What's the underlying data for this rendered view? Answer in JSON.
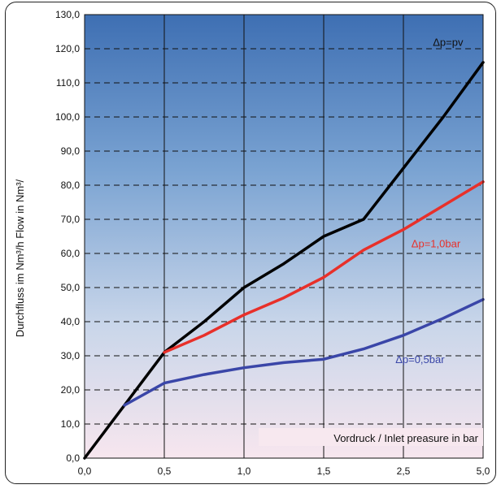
{
  "chart_data": {
    "type": "line",
    "ylabel": "Durchfluss im Nm³/h  Flow in Nm³/",
    "xlabel": "Vordruck / Inlet preasure in bar",
    "x_tick_labels": [
      "0,0",
      "0,5",
      "1,0",
      "1,5",
      "2,5",
      "5,0"
    ],
    "y_tick_labels": [
      "0,0",
      "10,0",
      "20,0",
      "30,0",
      "40,0",
      "50,0",
      "60,0",
      "70,0",
      "80,0",
      "90,0",
      "100,0",
      "110,0",
      "120,0",
      "130,0"
    ],
    "ylim": [
      0,
      130
    ],
    "grid": true,
    "series": [
      {
        "name": "Δp=pv",
        "color": "#000000",
        "x": [
          0.0,
          0.5,
          1.0,
          1.5,
          2.0,
          2.5,
          3.0,
          3.5,
          4.0,
          4.5,
          5.0
        ],
        "y": [
          0.0,
          15.5,
          31.0,
          40.0,
          50.0,
          57.0,
          65.0,
          70.0,
          85.0,
          100.0,
          116.0
        ]
      },
      {
        "name": "Δp=1,0bar",
        "color": "#e8302a",
        "x": [
          1.0,
          1.5,
          2.0,
          2.5,
          3.0,
          3.5,
          4.0,
          4.5,
          5.0
        ],
        "y": [
          31.0,
          36.0,
          42.0,
          47.0,
          53.0,
          61.0,
          67.0,
          74.0,
          81.0
        ]
      },
      {
        "name": "Δp=0,5bar",
        "color": "#3a46a8",
        "x": [
          0.5,
          1.0,
          1.5,
          2.0,
          2.5,
          3.0,
          3.5,
          4.0,
          4.5,
          5.0
        ],
        "y": [
          15.5,
          22.0,
          24.5,
          26.5,
          28.0,
          29.0,
          32.0,
          36.0,
          41.0,
          46.5
        ]
      }
    ]
  }
}
